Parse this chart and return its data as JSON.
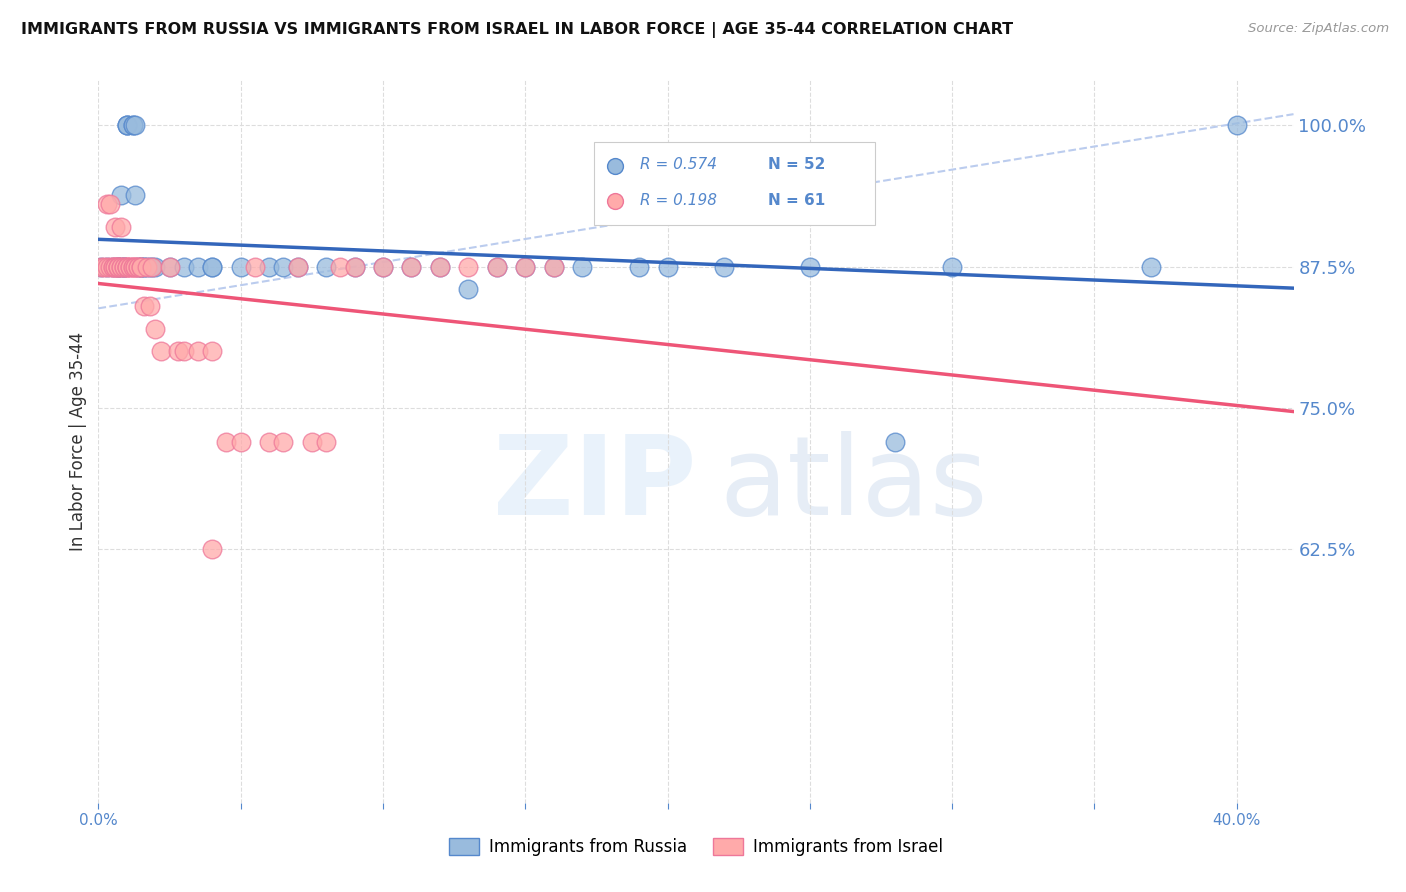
{
  "title": "IMMIGRANTS FROM RUSSIA VS IMMIGRANTS FROM ISRAEL IN LABOR FORCE | AGE 35-44 CORRELATION CHART",
  "source": "Source: ZipAtlas.com",
  "ylabel": "In Labor Force | Age 35-44",
  "xlim": [
    0.0,
    0.42
  ],
  "ylim": [
    0.4,
    1.04
  ],
  "xticks": [
    0.0,
    0.05,
    0.1,
    0.15,
    0.2,
    0.25,
    0.3,
    0.35,
    0.4
  ],
  "xticklabels": [
    "0.0%",
    "",
    "",
    "",
    "",
    "",
    "",
    "",
    "40.0%"
  ],
  "ytick_positions": [
    0.625,
    0.75,
    0.875,
    1.0
  ],
  "ytick_labels": [
    "62.5%",
    "75.0%",
    "87.5%",
    "100.0%"
  ],
  "russia_R": 0.574,
  "russia_N": 52,
  "israel_R": 0.198,
  "israel_N": 61,
  "russia_color": "#99BBDD",
  "israel_color": "#FFAAAA",
  "russia_edge_color": "#5588CC",
  "israel_edge_color": "#EE7799",
  "russia_line_color": "#3366BB",
  "israel_line_color": "#EE5577",
  "ref_line_color": "#BBCCEE",
  "grid_color": "#DDDDDD",
  "russia_x": [
    0.001,
    0.003,
    0.005,
    0.007,
    0.007,
    0.008,
    0.008,
    0.009,
    0.009,
    0.01,
    0.01,
    0.01,
    0.012,
    0.012,
    0.013,
    0.013,
    0.014,
    0.015,
    0.015,
    0.016,
    0.016,
    0.017,
    0.018,
    0.019,
    0.02,
    0.025,
    0.03,
    0.035,
    0.04,
    0.04,
    0.05,
    0.06,
    0.065,
    0.07,
    0.08,
    0.09,
    0.1,
    0.11,
    0.12,
    0.13,
    0.14,
    0.15,
    0.16,
    0.17,
    0.19,
    0.2,
    0.22,
    0.25,
    0.28,
    0.3,
    0.37,
    0.4
  ],
  "russia_y": [
    0.875,
    0.875,
    0.875,
    0.875,
    0.875,
    0.875,
    0.938,
    0.875,
    0.875,
    1.0,
    1.0,
    1.0,
    1.0,
    1.0,
    1.0,
    0.938,
    0.875,
    0.875,
    0.875,
    0.875,
    0.875,
    0.875,
    0.875,
    0.875,
    0.875,
    0.875,
    0.875,
    0.875,
    0.875,
    0.875,
    0.875,
    0.875,
    0.875,
    0.875,
    0.875,
    0.875,
    0.875,
    0.875,
    0.875,
    0.855,
    0.875,
    0.875,
    0.875,
    0.875,
    0.875,
    0.875,
    0.875,
    0.875,
    0.72,
    0.875,
    0.875,
    1.0
  ],
  "israel_x": [
    0.001,
    0.002,
    0.003,
    0.003,
    0.004,
    0.004,
    0.005,
    0.005,
    0.006,
    0.006,
    0.006,
    0.007,
    0.007,
    0.007,
    0.008,
    0.008,
    0.008,
    0.009,
    0.009,
    0.01,
    0.01,
    0.01,
    0.011,
    0.011,
    0.012,
    0.012,
    0.013,
    0.013,
    0.014,
    0.014,
    0.015,
    0.015,
    0.016,
    0.017,
    0.018,
    0.019,
    0.02,
    0.022,
    0.025,
    0.028,
    0.03,
    0.035,
    0.04,
    0.045,
    0.05,
    0.055,
    0.06,
    0.065,
    0.07,
    0.075,
    0.08,
    0.085,
    0.09,
    0.1,
    0.11,
    0.12,
    0.13,
    0.14,
    0.15,
    0.16,
    0.04
  ],
  "israel_y": [
    0.875,
    0.875,
    0.875,
    0.93,
    0.875,
    0.93,
    0.875,
    0.875,
    0.875,
    0.875,
    0.91,
    0.875,
    0.875,
    0.875,
    0.875,
    0.91,
    0.875,
    0.875,
    0.875,
    0.875,
    0.875,
    0.875,
    0.875,
    0.875,
    0.875,
    0.875,
    0.875,
    0.875,
    0.875,
    0.875,
    0.875,
    0.875,
    0.84,
    0.875,
    0.84,
    0.875,
    0.82,
    0.8,
    0.875,
    0.8,
    0.8,
    0.8,
    0.8,
    0.72,
    0.72,
    0.875,
    0.72,
    0.72,
    0.875,
    0.72,
    0.72,
    0.875,
    0.875,
    0.875,
    0.875,
    0.875,
    0.875,
    0.875,
    0.875,
    0.875,
    0.625
  ]
}
